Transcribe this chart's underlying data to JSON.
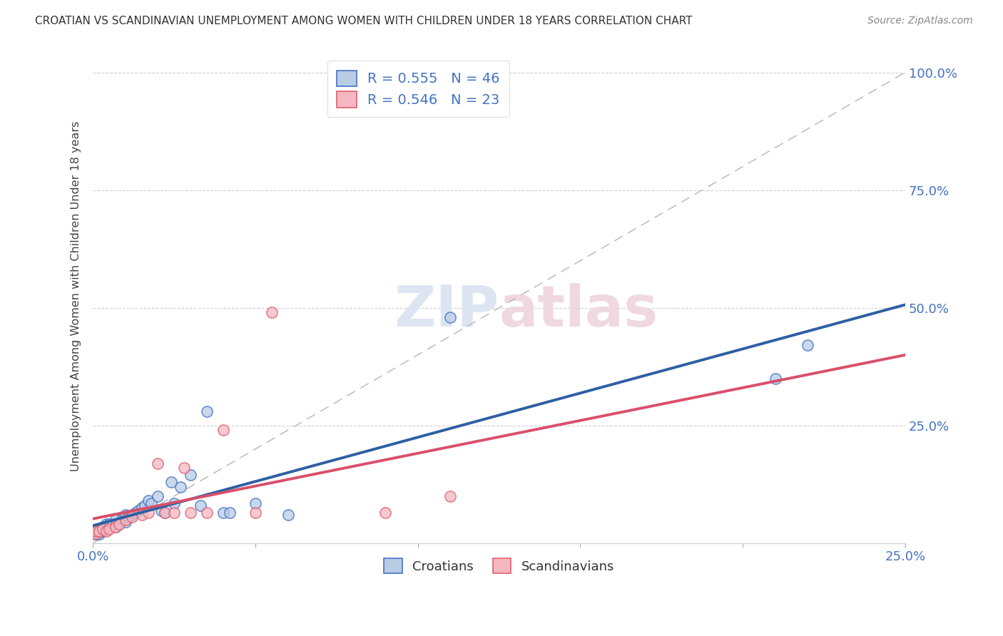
{
  "title": "CROATIAN VS SCANDINAVIAN UNEMPLOYMENT AMONG WOMEN WITH CHILDREN UNDER 18 YEARS CORRELATION CHART",
  "source": "Source: ZipAtlas.com",
  "ylabel": "Unemployment Among Women with Children Under 18 years",
  "xlabel": "",
  "xlim": [
    0.0,
    0.25
  ],
  "ylim": [
    0.0,
    1.05
  ],
  "xtick_vals": [
    0.0,
    0.05,
    0.1,
    0.15,
    0.2,
    0.25
  ],
  "ytick_vals": [
    0.0,
    0.25,
    0.5,
    0.75,
    1.0
  ],
  "croatian_R": 0.555,
  "croatian_N": 46,
  "scandinavian_R": 0.546,
  "scandinavian_N": 23,
  "blue_face": "#b8cce4",
  "blue_edge": "#4472c4",
  "pink_face": "#f4b8c1",
  "pink_edge": "#e06070",
  "blue_line_color": "#2e5fa3",
  "pink_line_color": "#d94f6a",
  "diagonal_color": "#c0c0c0",
  "background_color": "#ffffff",
  "croatian_x": [
    0.0005,
    0.001,
    0.001,
    0.001,
    0.0015,
    0.002,
    0.002,
    0.002,
    0.003,
    0.003,
    0.003,
    0.004,
    0.004,
    0.005,
    0.005,
    0.006,
    0.007,
    0.007,
    0.008,
    0.009,
    0.01,
    0.01,
    0.011,
    0.012,
    0.013,
    0.014,
    0.015,
    0.016,
    0.017,
    0.018,
    0.02,
    0.021,
    0.022,
    0.024,
    0.025,
    0.027,
    0.03,
    0.033,
    0.035,
    0.04,
    0.042,
    0.05,
    0.06,
    0.11,
    0.21,
    0.22
  ],
  "croatian_y": [
    0.02,
    0.02,
    0.025,
    0.03,
    0.02,
    0.02,
    0.025,
    0.03,
    0.025,
    0.03,
    0.035,
    0.03,
    0.04,
    0.035,
    0.04,
    0.04,
    0.035,
    0.05,
    0.04,
    0.05,
    0.045,
    0.06,
    0.055,
    0.06,
    0.065,
    0.07,
    0.075,
    0.08,
    0.09,
    0.085,
    0.1,
    0.07,
    0.065,
    0.13,
    0.085,
    0.12,
    0.145,
    0.08,
    0.28,
    0.065,
    0.065,
    0.085,
    0.06,
    0.48,
    0.35,
    0.42
  ],
  "scandinavian_x": [
    0.0005,
    0.001,
    0.002,
    0.003,
    0.004,
    0.005,
    0.007,
    0.008,
    0.01,
    0.012,
    0.015,
    0.017,
    0.02,
    0.022,
    0.025,
    0.028,
    0.03,
    0.035,
    0.04,
    0.05,
    0.055,
    0.09,
    0.11
  ],
  "scandinavian_y": [
    0.02,
    0.025,
    0.025,
    0.03,
    0.025,
    0.03,
    0.035,
    0.04,
    0.05,
    0.055,
    0.06,
    0.065,
    0.17,
    0.065,
    0.065,
    0.16,
    0.065,
    0.065,
    0.24,
    0.065,
    0.49,
    0.065,
    0.1
  ]
}
